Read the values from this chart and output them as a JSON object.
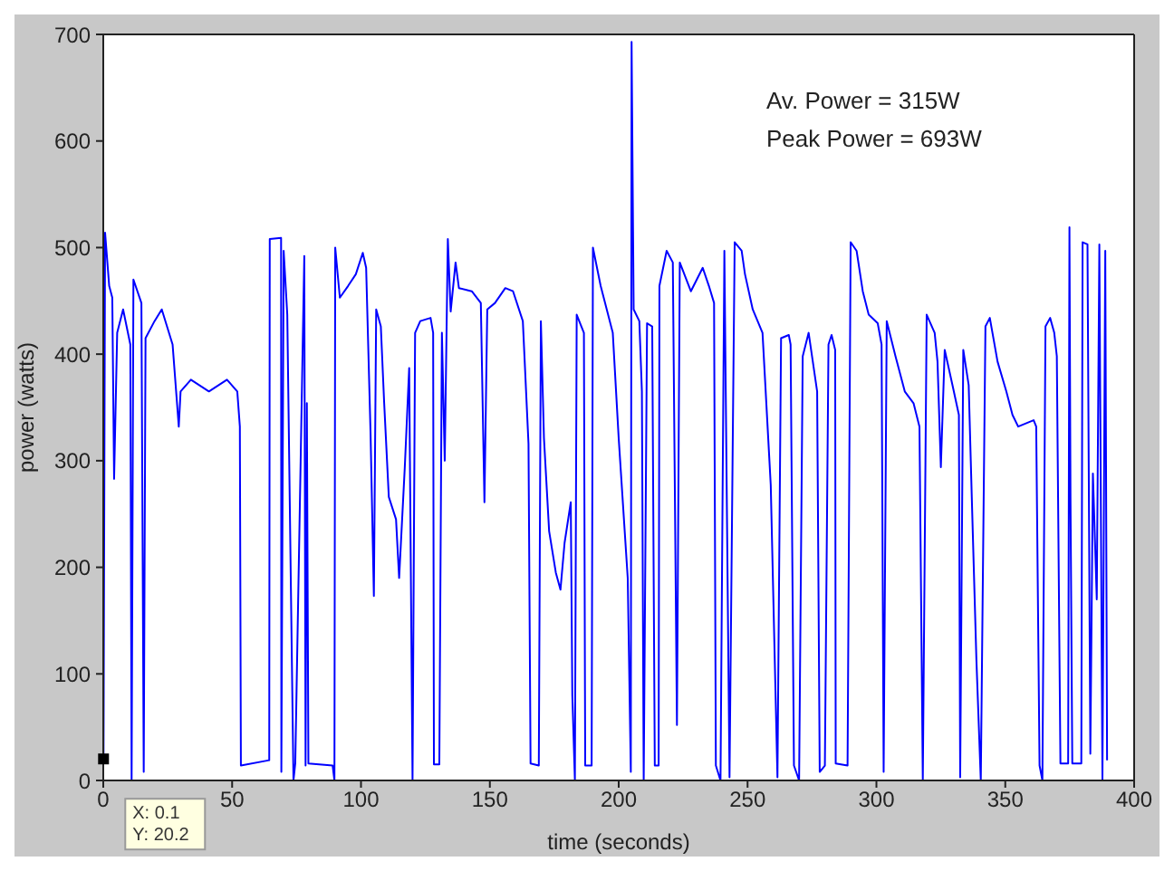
{
  "chart_data": {
    "type": "line",
    "xlabel": "time (seconds)",
    "ylabel": "power (watts)",
    "xlim": [
      0,
      400
    ],
    "ylim": [
      0,
      700
    ],
    "xticks": [
      0,
      50,
      100,
      150,
      200,
      250,
      300,
      350,
      400
    ],
    "yticks": [
      0,
      100,
      200,
      300,
      400,
      500,
      600,
      700
    ],
    "marker": "none",
    "line_style": "solid",
    "annotations": [
      "Av. Power = 315W",
      "Peak Power = 693W",
      {
        "text": "X: 0.1\nY: 20.2",
        "x": 0.1,
        "y": 20.2
      }
    ],
    "series": [
      {
        "color": "#0000ff",
        "x": [
          0.1,
          0.7,
          2.3,
          3.5,
          4.2,
          5.4,
          7.7,
          10.5,
          11,
          11.7,
          14.8,
          15.7,
          16.4,
          19.9,
          22.7,
          26.9,
          29.3,
          30,
          34,
          41,
          48,
          52,
          53,
          53.4,
          64.4,
          64.6,
          69,
          69.1,
          70,
          71.4,
          73.8,
          74.5,
          78,
          78.5,
          79,
          79.6,
          89,
          89.7,
          90,
          91.8,
          95,
          98,
          100.7,
          102,
          103.7,
          105,
          105.9,
          107.7,
          109,
          110.8,
          113.6,
          114.8,
          117,
          118.7,
          120,
          121,
          123,
          127,
          128,
          128.3,
          130.4,
          131.4,
          132.5,
          133.7,
          134.8,
          136.7,
          138,
          143,
          146.5,
          147.9,
          149,
          152,
          156,
          159,
          162.8,
          165,
          165.8,
          169,
          169.8,
          171,
          173,
          175.6,
          177.4,
          179,
          181.4,
          182,
          183,
          183.7,
          186.5,
          187,
          189.5,
          190,
          193,
          197.7,
          200,
          203.5,
          204.7,
          205,
          205.8,
          208,
          209,
          209.7,
          211,
          213,
          214,
          215.5,
          215.8,
          218.6,
          221,
          222.6,
          223.7,
          228,
          232.6,
          235,
          237,
          237.7,
          239.5,
          241,
          243,
          245,
          247.7,
          249,
          252,
          255.8,
          259,
          261.6,
          263,
          266,
          266.7,
          268,
          270,
          271.4,
          273.7,
          277,
          278,
          280,
          281.4,
          282.6,
          284,
          284.2,
          288.8,
          290,
          292.3,
          294.7,
          297,
          300.5,
          302,
          302.8,
          304,
          307.4,
          311,
          314.4,
          316.7,
          318,
          319.5,
          322.6,
          323.7,
          325,
          326.5,
          329.5,
          332,
          332.5,
          333.7,
          335.8,
          337,
          338.8,
          340.5,
          342.3,
          344,
          347,
          350.4,
          352.8,
          355,
          361,
          362,
          363.3,
          364.4,
          365.6,
          367.4,
          369,
          370,
          371.4,
          374.4,
          374.9,
          375.3,
          376,
          379.5,
          380,
          381.9,
          383,
          384,
          385.5,
          386.5,
          387.7,
          388.8,
          389.5
        ],
        "values": [
          20.2,
          514,
          464,
          453,
          283,
          420,
          442,
          409,
          0,
          470,
          448,
          8,
          415,
          431,
          442,
          409,
          332,
          365,
          376,
          365,
          376,
          365,
          332,
          14,
          19,
          508,
          509,
          8,
          497,
          437,
          0,
          16,
          492,
          14,
          354,
          16,
          14,
          0,
          500,
          453,
          464,
          475,
          495,
          481,
          327,
          173,
          442,
          426,
          354,
          266,
          245,
          190,
          294,
          387,
          0,
          420,
          431,
          434,
          420,
          15,
          15,
          420,
          300,
          508,
          440,
          486,
          462,
          459,
          448,
          261,
          442,
          448,
          462,
          459,
          431,
          316,
          16,
          14,
          431,
          321,
          234,
          195,
          179,
          223,
          261,
          80,
          0,
          437,
          420,
          14,
          14,
          500,
          464,
          420,
          321,
          190,
          8,
          693,
          442,
          431,
          365,
          0,
          429,
          426,
          14,
          14,
          464,
          497,
          486,
          52,
          486,
          459,
          481,
          464,
          448,
          14,
          0,
          497,
          3,
          505,
          497,
          475,
          442,
          420,
          277,
          3,
          415,
          418,
          409,
          14,
          0,
          398,
          420,
          365,
          8,
          14,
          409,
          418,
          404,
          16,
          14,
          505,
          497,
          459,
          437,
          429,
          409,
          8,
          431,
          398,
          365,
          354,
          332,
          0,
          437,
          420,
          393,
          294,
          404,
          371,
          343,
          3,
          404,
          371,
          266,
          113,
          0,
          426,
          434,
          393,
          365,
          343,
          332,
          338,
          332,
          14,
          0,
          426,
          434,
          420,
          398,
          16,
          16,
          519,
          266,
          16,
          16,
          505,
          503,
          25,
          288,
          170,
          503,
          0,
          497,
          19
        ]
      }
    ]
  }
}
